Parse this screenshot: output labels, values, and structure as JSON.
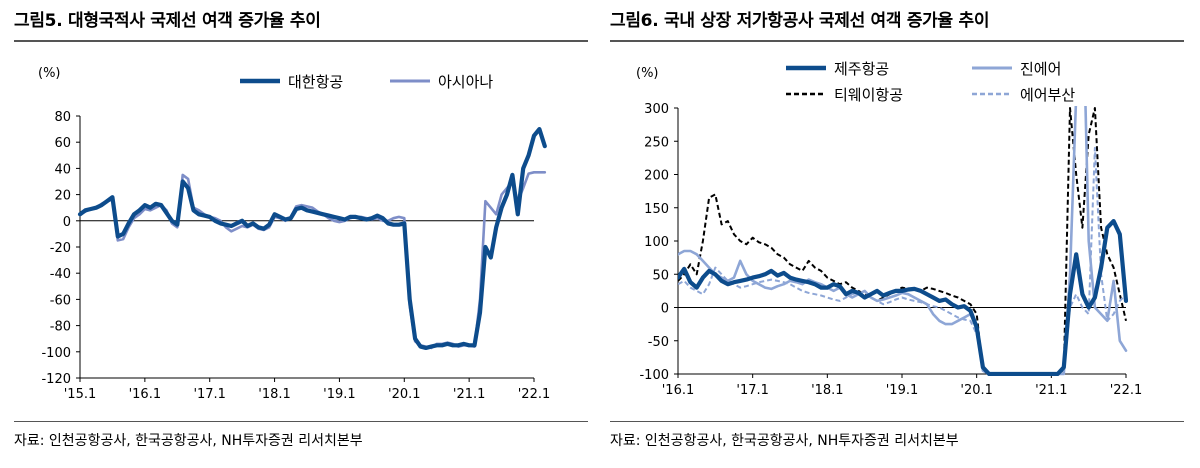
{
  "charts": [
    {
      "title": "그림5. 대형국적사 국제선 여객 증가율 추이",
      "source": "자료: 인천공항공사, 한국공항공사, NH투자증권 리서치본부",
      "chart_data": {
        "type": "line",
        "yunit": "(%)",
        "ylim": [
          -120,
          80
        ],
        "yticks": [
          80,
          60,
          40,
          20,
          0,
          -20,
          -40,
          -60,
          -80,
          -100,
          -120
        ],
        "xticks": [
          {
            "label": "'15.1",
            "i": 0
          },
          {
            "label": "'16.1",
            "i": 12
          },
          {
            "label": "'17.1",
            "i": 24
          },
          {
            "label": "'18.1",
            "i": 36
          },
          {
            "label": "'19.1",
            "i": 48
          },
          {
            "label": "'20.1",
            "i": 60
          },
          {
            "label": "'21.1",
            "i": 72
          },
          {
            "label": "'22.1",
            "i": 84
          }
        ],
        "n_points": 85,
        "legend_position": "top-right",
        "series": [
          {
            "name": "대한항공",
            "color": "#0d4c8c",
            "style": "thick-solid",
            "values": [
              5,
              8,
              9,
              10,
              12,
              15,
              18,
              -12,
              -10,
              -2,
              5,
              8,
              12,
              10,
              13,
              12,
              6,
              0,
              -3,
              30,
              25,
              8,
              5,
              4,
              3,
              0,
              -2,
              -3,
              -4,
              -2,
              0,
              -4,
              -2,
              -5,
              -6,
              -3,
              5,
              3,
              1,
              2,
              9,
              10,
              8,
              7,
              6,
              5,
              4,
              3,
              2,
              1,
              3,
              3,
              2,
              1,
              2,
              4,
              2,
              -2,
              -3,
              -3,
              -2,
              -60,
              -90,
              -96,
              -97,
              -96,
              -95,
              -95,
              -94,
              -95,
              -95,
              -94,
              -95,
              -95,
              -70,
              -20,
              -28,
              -5,
              10,
              20,
              35,
              5,
              40,
              50,
              65,
              70,
              57
            ]
          },
          {
            "name": "아시아나",
            "color": "#7e8ec8",
            "style": "solid",
            "values": [
              5,
              7,
              9,
              10,
              13,
              15,
              16,
              -15,
              -14,
              -5,
              2,
              5,
              9,
              8,
              10,
              12,
              8,
              -2,
              -5,
              35,
              32,
              10,
              8,
              5,
              3,
              2,
              0,
              -5,
              -8,
              -6,
              -4,
              -5,
              -3,
              -6,
              -7,
              -5,
              3,
              2,
              0,
              3,
              11,
              12,
              11,
              10,
              7,
              5,
              2,
              0,
              -1,
              0,
              2,
              3,
              3,
              2,
              1,
              2,
              0,
              0,
              2,
              3,
              2,
              -65,
              -92,
              -95,
              -96,
              -97,
              -94,
              -94,
              -93,
              -94,
              -96,
              -95,
              -95,
              -96,
              -60,
              15,
              10,
              5,
              20,
              25,
              30,
              15,
              25,
              36,
              37,
              37,
              37
            ]
          }
        ]
      }
    },
    {
      "title": "그림6. 국내 상장 저가항공사 국제선 여객 증가율 추이",
      "source": "자료: 인천공항공사, 한국공항공사, NH투자증권 리서치본부",
      "chart_data": {
        "type": "line",
        "yunit": "(%)",
        "ylim": [
          -100,
          300
        ],
        "yticks": [
          300,
          250,
          200,
          150,
          100,
          50,
          0,
          -50,
          -100
        ],
        "xticks": [
          {
            "label": "'16.1",
            "i": 0
          },
          {
            "label": "'17.1",
            "i": 12
          },
          {
            "label": "'18.1",
            "i": 24
          },
          {
            "label": "'19.1",
            "i": 36
          },
          {
            "label": "'20.1",
            "i": 48
          },
          {
            "label": "'21.1",
            "i": 60
          },
          {
            "label": "'22.1",
            "i": 72
          }
        ],
        "n_points": 73,
        "legend_position": "top",
        "series": [
          {
            "name": "제주항공",
            "color": "#0d4c8c",
            "style": "thick-solid",
            "values": [
              45,
              58,
              38,
              30,
              45,
              55,
              50,
              40,
              35,
              38,
              40,
              42,
              45,
              47,
              50,
              55,
              48,
              52,
              45,
              42,
              40,
              38,
              35,
              30,
              30,
              35,
              32,
              20,
              25,
              22,
              15,
              20,
              25,
              18,
              22,
              25,
              25,
              27,
              28,
              25,
              20,
              15,
              10,
              12,
              5,
              0,
              2,
              -5,
              -30,
              -90,
              -100,
              -100,
              -100,
              -100,
              -100,
              -100,
              -100,
              -100,
              -100,
              -100,
              -100,
              -100,
              -90,
              20,
              80,
              20,
              0,
              15,
              60,
              120,
              130,
              110,
              10
            ]
          },
          {
            "name": "진에어",
            "color": "#8ea6d6",
            "style": "solid",
            "values": [
              80,
              85,
              85,
              80,
              70,
              60,
              50,
              45,
              40,
              45,
              70,
              50,
              40,
              35,
              30,
              28,
              32,
              35,
              40,
              38,
              35,
              42,
              38,
              35,
              30,
              25,
              30,
              20,
              15,
              20,
              25,
              15,
              10,
              12,
              15,
              18,
              22,
              20,
              15,
              10,
              5,
              -10,
              -20,
              -25,
              -25,
              -20,
              -15,
              -10,
              -30,
              -95,
              -100,
              -100,
              -100,
              -100,
              -100,
              -100,
              -100,
              -100,
              -100,
              -100,
              -100,
              -100,
              -100,
              50,
              320,
              500,
              100,
              0,
              -10,
              -20,
              40,
              -50,
              -65
            ]
          },
          {
            "name": "티웨이항공",
            "color": "#000000",
            "style": "dashed",
            "values": [
              40,
              50,
              65,
              50,
              100,
              165,
              170,
              125,
              130,
              110,
              100,
              95,
              105,
              98,
              95,
              90,
              80,
              75,
              65,
              60,
              55,
              70,
              60,
              55,
              45,
              40,
              35,
              38,
              30,
              25,
              20,
              15,
              10,
              15,
              20,
              25,
              30,
              28,
              28,
              25,
              30,
              28,
              25,
              22,
              18,
              15,
              10,
              5,
              -10,
              -95,
              -100,
              -100,
              -100,
              -100,
              -100,
              -100,
              -100,
              -100,
              -100,
              -100,
              -100,
              -100,
              -95,
              300,
              200,
              120,
              260,
              300,
              120,
              80,
              60,
              20,
              -20
            ]
          },
          {
            "name": "에어부산",
            "color": "#8ea6d6",
            "style": "dashed",
            "values": [
              35,
              40,
              30,
              25,
              20,
              35,
              60,
              50,
              40,
              35,
              30,
              32,
              35,
              38,
              40,
              42,
              40,
              38,
              35,
              30,
              25,
              22,
              20,
              18,
              15,
              12,
              10,
              15,
              20,
              22,
              18,
              15,
              10,
              5,
              8,
              12,
              15,
              12,
              10,
              8,
              5,
              2,
              0,
              -5,
              -10,
              -15,
              -18,
              -20,
              -40,
              -95,
              -100,
              -100,
              -100,
              -100,
              -100,
              -100,
              -100,
              -100,
              -100,
              -100,
              -100,
              -100,
              -95,
              0,
              20,
              0,
              -10,
              240,
              50,
              -20,
              -10,
              10,
              20
            ]
          }
        ]
      }
    }
  ]
}
